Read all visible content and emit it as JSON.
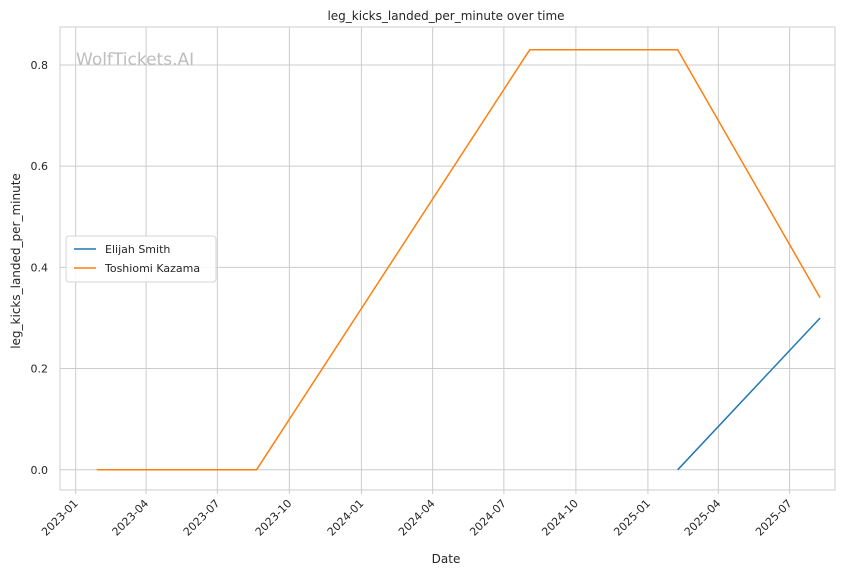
{
  "chart_data": {
    "type": "line",
    "title": "leg_kicks_landed_per_minute over time",
    "xlabel": "Date",
    "ylabel": "leg_kicks_landed_per_minute",
    "watermark": "WolfTickets.AI",
    "x_ticks": [
      "2023-01",
      "2023-04",
      "2023-07",
      "2023-10",
      "2024-01",
      "2024-04",
      "2024-07",
      "2024-10",
      "2025-01",
      "2025-04",
      "2025-07"
    ],
    "y_ticks": [
      "0.0",
      "0.2",
      "0.4",
      "0.6",
      "0.8"
    ],
    "xlim": [
      "2022-12-12",
      "2025-08-28"
    ],
    "ylim": [
      -0.04,
      0.875
    ],
    "grid": true,
    "legend_position": "center-left",
    "series": [
      {
        "name": "Elijah Smith",
        "color": "#1f77b4",
        "points": [
          {
            "x": "2025-02-08",
            "y": 0.0
          },
          {
            "x": "2025-08-09",
            "y": 0.3
          }
        ]
      },
      {
        "name": "Toshiomi Kazama",
        "color": "#ff7f0e",
        "points": [
          {
            "x": "2023-01-28",
            "y": 0.0
          },
          {
            "x": "2023-08-20",
            "y": 0.0
          },
          {
            "x": "2024-08-03",
            "y": 0.83
          },
          {
            "x": "2025-02-08",
            "y": 0.83
          },
          {
            "x": "2025-08-09",
            "y": 0.34
          }
        ]
      }
    ]
  }
}
